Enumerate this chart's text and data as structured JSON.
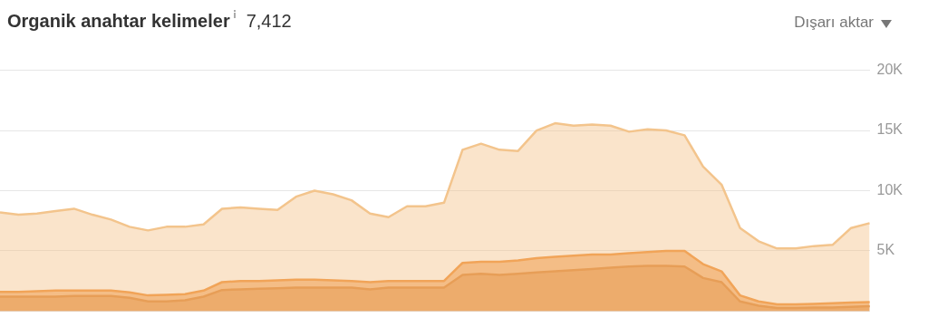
{
  "chart_data": {
    "type": "area",
    "title": "Organik anahtar kelimeler",
    "subtitle": "7,412",
    "annotations": [
      "Dışarı aktar"
    ],
    "categories": [
      null,
      null,
      null,
      null,
      null,
      null,
      null,
      null,
      null,
      null,
      null,
      null,
      null,
      null,
      null,
      null,
      null,
      null,
      null,
      null,
      null,
      null,
      null,
      null,
      null,
      null,
      null,
      null,
      null,
      null,
      null,
      null,
      null,
      null,
      null,
      null,
      null,
      null,
      null,
      null,
      null,
      null,
      null,
      null,
      null,
      null,
      null,
      null
    ],
    "series": [
      {
        "color": "#f3c48c",
        "values": [
          8.2,
          8.0,
          8.1,
          8.3,
          8.5,
          8.0,
          7.6,
          7.0,
          6.7,
          7.0,
          7.0,
          7.2,
          8.5,
          8.6,
          8.5,
          8.4,
          9.5,
          10.0,
          9.7,
          9.2,
          8.1,
          7.8,
          8.7,
          8.7,
          9.0,
          13.4,
          13.9,
          13.4,
          13.3,
          15.0,
          15.6,
          15.4,
          15.5,
          15.4,
          14.9,
          15.1,
          15.0,
          14.6,
          12.0,
          10.5,
          6.9,
          5.8,
          5.2,
          5.2,
          5.4,
          5.5,
          6.9,
          7.3
        ]
      },
      {
        "color": "#ee8a2e",
        "values": [
          1.6,
          1.6,
          1.65,
          1.7,
          1.7,
          1.7,
          1.7,
          1.55,
          1.3,
          1.35,
          1.4,
          1.7,
          2.4,
          2.5,
          2.5,
          2.55,
          2.6,
          2.6,
          2.55,
          2.5,
          2.4,
          2.5,
          2.5,
          2.5,
          2.5,
          4.0,
          4.1,
          4.1,
          4.2,
          4.4,
          4.5,
          4.6,
          4.7,
          4.7,
          4.8,
          4.9,
          5.0,
          5.0,
          3.9,
          3.3,
          1.3,
          0.8,
          0.55,
          0.55,
          0.6,
          0.65,
          0.7,
          0.75
        ]
      },
      {
        "color": "#c2712b",
        "values": [
          1.2,
          1.2,
          1.2,
          1.2,
          1.25,
          1.25,
          1.25,
          1.1,
          0.8,
          0.8,
          0.9,
          1.2,
          1.75,
          1.8,
          1.85,
          1.9,
          1.95,
          1.95,
          1.95,
          1.95,
          1.8,
          1.95,
          1.95,
          1.95,
          1.95,
          3.0,
          3.1,
          3.0,
          3.1,
          3.2,
          3.3,
          3.4,
          3.5,
          3.6,
          3.7,
          3.75,
          3.75,
          3.7,
          2.75,
          2.4,
          0.8,
          0.45,
          0.25,
          0.25,
          0.3,
          0.3,
          0.35,
          0.4
        ]
      }
    ],
    "ylim": [
      0,
      20
    ],
    "yticks": [
      {
        "value": 0,
        "label": null
      },
      {
        "value": 5,
        "label": "5K"
      },
      {
        "value": 10,
        "label": "10K"
      },
      {
        "value": 15,
        "label": "15K"
      },
      {
        "value": 20,
        "label": "20K"
      }
    ],
    "grid": "y",
    "legend": false,
    "tick_labels": "y",
    "marker": "none",
    "line_style": "solid"
  }
}
